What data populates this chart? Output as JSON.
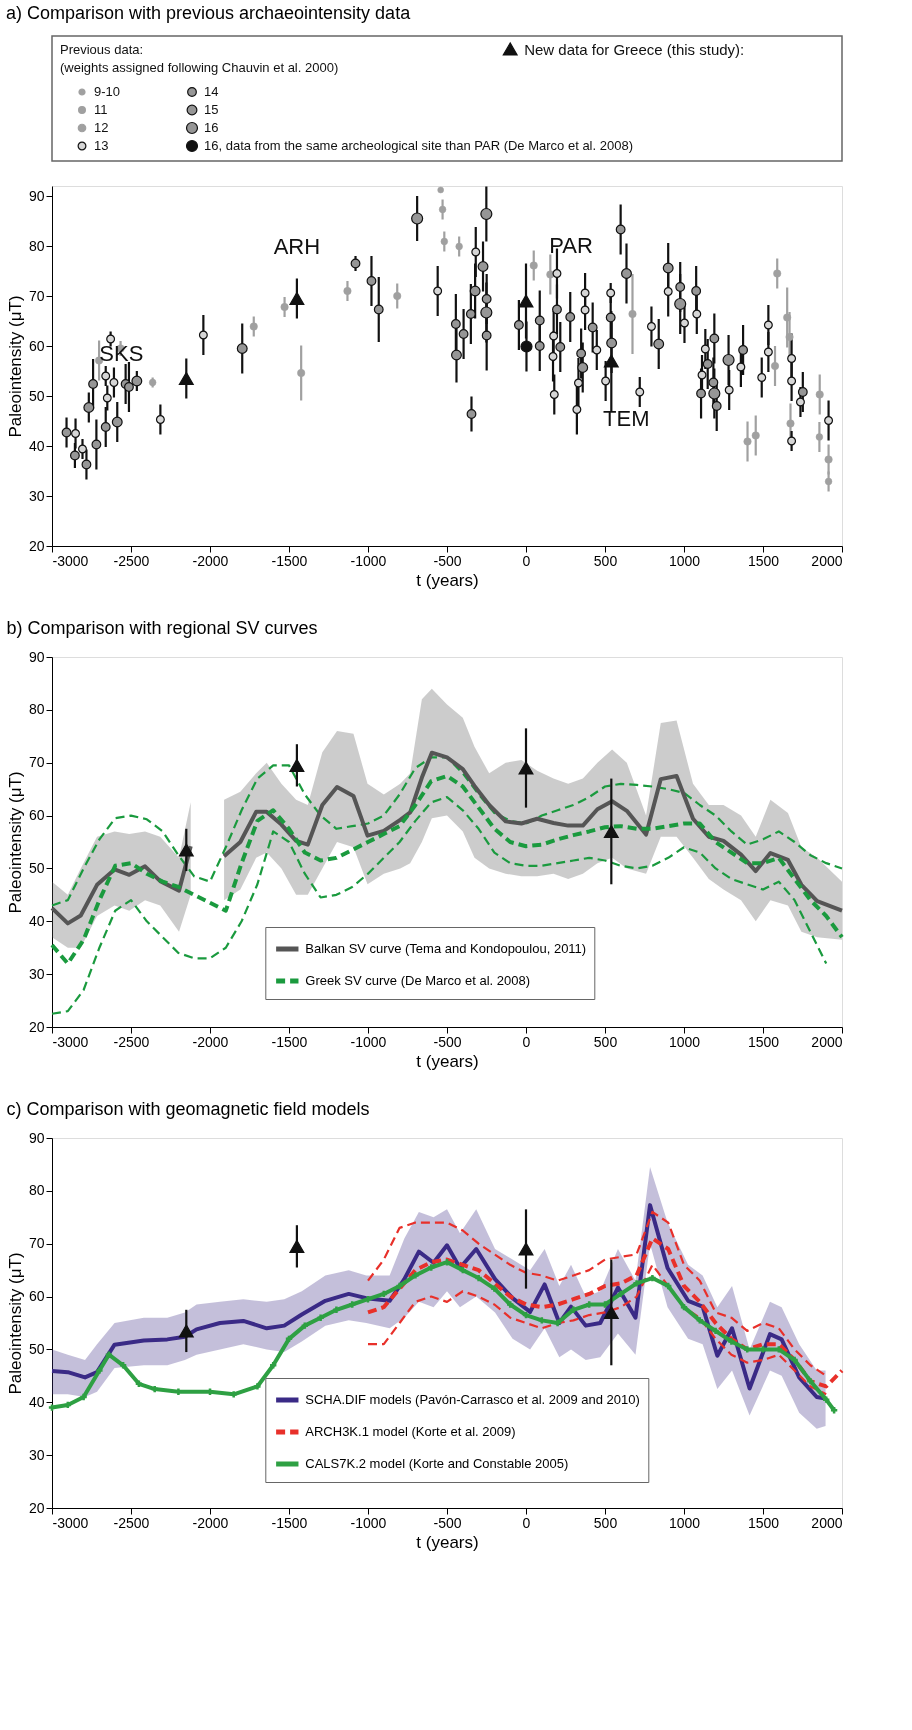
{
  "chart_data": [
    {
      "type": "scatter",
      "title": "a) Comparison with previous archaeointensity data",
      "xlabel": "t (years)",
      "ylabel": "Paleointensity (μT)",
      "xlim": [
        -3000,
        2000
      ],
      "xticks": [
        -3000,
        -2500,
        -2000,
        -1500,
        -1000,
        -500,
        0,
        500,
        1000,
        1500,
        2000
      ],
      "ylim": [
        20,
        92
      ],
      "yticks": [
        20,
        30,
        40,
        50,
        60,
        70,
        80,
        90
      ],
      "legend": "top",
      "legend_title": "Previous data:\n(weights assigned following Chauvin et al. 2000)",
      "annotations": [
        {
          "text": "SKS",
          "x": -2150,
          "y": 53.5
        },
        {
          "text": "ARH",
          "x": -1450,
          "y": 69.5
        },
        {
          "text": "PAR",
          "x": 0,
          "y": 69
        },
        {
          "text": "TEM",
          "x": 540,
          "y": 57
        }
      ],
      "series": [
        {
          "name": "9-10",
          "color": "#a0a0a0",
          "marker": "circle",
          "x": [
            -540
          ],
          "values": [
            91.2
          ]
        },
        {
          "name": "11",
          "color": "#a0a0a0",
          "marker": "circle",
          "x": [
            -528,
            -423,
            -517,
            -2363,
            1915,
            1857
          ],
          "values": [
            87.3,
            79.9,
            80.9,
            52.7,
            32.9,
            41.8
          ],
          "errors": [
            2,
            2,
            2,
            1,
            2,
            3
          ]
        },
        {
          "name": "12",
          "color": "#a0a0a0",
          "marker": "circle",
          "x": [
            -2702,
            -2566,
            -1723,
            -1528,
            -1423,
            -1130,
            -815,
            154,
            49,
            674,
            1590,
            1653,
            1576,
            1402,
            1454,
            1859,
            1915,
            1668,
            1674
          ],
          "values": [
            57.1,
            59.5,
            63.9,
            67.8,
            54.6,
            71.0,
            70.0,
            74.3,
            76.1,
            66.4,
            74.5,
            65.7,
            56.0,
            40.9,
            42.1,
            50.3,
            37.3,
            61.8,
            44.5
          ],
          "errors": [
            4,
            1.5,
            2,
            2,
            5.5,
            2,
            2.5,
            4,
            3,
            8,
            3,
            6,
            4,
            4,
            4,
            4,
            3,
            5,
            4
          ]
        },
        {
          "name": "13",
          "color": "#d6d6d6",
          "marker": "circle",
          "x": [
            -2851,
            -2807,
            -2650,
            -2660,
            -2629,
            -2608,
            -2314,
            -2042,
            -559,
            -318,
            196,
            175,
            171,
            374,
            374,
            332,
            322,
            179,
            448,
            504,
            536,
            720,
            794,
            900,
            1081,
            1003,
            1135,
            1114,
            1286,
            1360,
            1492,
            1534,
            1534,
            1681,
            1681,
            1681,
            1737,
            1915
          ],
          "values": [
            42.5,
            39.4,
            49.6,
            54.0,
            61.4,
            52.7,
            45.3,
            62.2,
            71.0,
            78.8,
            74.5,
            62.0,
            57.9,
            70.6,
            67.2,
            52.6,
            47.3,
            50.3,
            59.2,
            53.0,
            70.6,
            50.8,
            63.9,
            70.9,
            66.4,
            64.6,
            59.4,
            54.2,
            51.2,
            55.8,
            53.7,
            64.2,
            58.8,
            57.5,
            53.0,
            41.0,
            48.8,
            45.1
          ],
          "errors": [
            3,
            2,
            2.5,
            2,
            1.5,
            3,
            3,
            4,
            5,
            5,
            5,
            5,
            5,
            4,
            4,
            5,
            5,
            4,
            4,
            4,
            2,
            3,
            4,
            5,
            4,
            4,
            4,
            4,
            4,
            4,
            4,
            4,
            4,
            5,
            4,
            2,
            3,
            4
          ]
        },
        {
          "name": "14",
          "color": "#969696",
          "marker": "circle",
          "x": [
            -2908,
            -2855,
            -2782,
            -2719,
            -2740,
            -2660,
            -2534,
            -2513,
            -1079,
            -978,
            -932,
            -345,
            -444,
            -395,
            -249,
            -249,
            -349,
            -45,
            87,
            87,
            196,
            217,
            280,
            422,
            349,
            536,
            599,
            976,
            1077,
            1192,
            1150,
            1108,
            1186,
            1207,
            1374,
            1752
          ],
          "values": [
            42.7,
            38.1,
            36.3,
            40.3,
            52.4,
            43.8,
            52.4,
            51.8,
            76.5,
            73.0,
            67.3,
            46.4,
            64.4,
            62.4,
            69.4,
            62.1,
            66.4,
            64.2,
            65.1,
            60.0,
            67.3,
            59.8,
            65.8,
            63.7,
            58.5,
            65.7,
            83.3,
            71.8,
            71.0,
            61.5,
            56.4,
            50.5,
            52.7,
            48.0,
            59.2,
            50.8
          ],
          "errors": [
            3,
            2.5,
            3,
            5,
            5,
            4,
            4,
            5,
            1.5,
            5,
            6.5,
            3.5,
            6,
            5,
            5,
            7,
            6,
            5,
            6,
            5,
            5,
            5,
            5,
            5,
            5,
            5,
            5,
            5,
            5,
            5,
            5,
            5,
            5,
            5,
            5,
            4
          ]
        },
        {
          "name": "15",
          "color": "#969696",
          "marker": "circle",
          "x": [
            -2767,
            -2587,
            -2463,
            -1796,
            -440,
            -272,
            -322,
            359,
            542,
            636,
            840,
            900
          ],
          "values": [
            47.7,
            44.8,
            53.0,
            59.5,
            58.2,
            75.9,
            71.0,
            55.7,
            60.6,
            74.5,
            60.4,
            75.6
          ],
          "errors": [
            3,
            4,
            2,
            5,
            5.5,
            5,
            5.5,
            5,
            6,
            6,
            5,
            5
          ]
        },
        {
          "name": "16",
          "color": "#969696",
          "marker": "circle",
          "x": [
            -689,
            -251,
            -251,
            976,
            1192,
            1282
          ],
          "values": [
            85.5,
            86.4,
            66.7,
            68.4,
            50.5,
            57.2
          ],
          "errors": [
            4.5,
            5.5,
            6,
            6,
            5,
            5
          ]
        },
        {
          "name": "16, data from the same archeological site than PAR (De Marco et al. 2008)",
          "color": "#111111",
          "marker": "circle",
          "x": [
            3
          ],
          "values": [
            59.9
          ],
          "errors": [
            5
          ]
        },
        {
          "name": "New  data for Greece (this study):",
          "color": "#111111",
          "marker": "triangle",
          "x": [
            -2150,
            -1450,
            0,
            540
          ],
          "values": [
            53.5,
            69.5,
            69,
            57
          ],
          "errors": [
            4,
            4,
            7.5,
            10
          ]
        }
      ]
    },
    {
      "type": "line",
      "title": "b) Comparison with regional SV curves",
      "xlabel": "t (years)",
      "ylabel": "Paleointensity (μT)",
      "xlim": [
        -3000,
        2000
      ],
      "xticks": [
        -3000,
        -2500,
        -2000,
        -1500,
        -1000,
        -500,
        0,
        500,
        1000,
        1500,
        2000
      ],
      "ylim": [
        20,
        90
      ],
      "yticks": [
        20,
        30,
        40,
        50,
        60,
        70,
        80,
        90
      ],
      "legend": "bottom",
      "x": [
        -3000,
        -2900,
        -2800,
        -2700,
        -2600,
        -2500,
        -2400,
        -2300,
        -2200,
        -2100,
        -2000,
        -1900,
        -1800,
        -1700,
        -1600,
        -1500,
        -1400,
        -1300,
        -1200,
        -1100,
        -1000,
        -900,
        -800,
        -700,
        -600,
        -500,
        -400,
        -300,
        -200,
        -100,
        0,
        100,
        200,
        300,
        400,
        500,
        600,
        700,
        800,
        900,
        1000,
        1100,
        1200,
        1300,
        1400,
        1500,
        1600,
        1700,
        1800,
        1900,
        2000
      ],
      "series": [
        {
          "color": "#1a9a3e",
          "line_style": "dashed",
          "values": [
            43,
            44,
            50,
            55.5,
            59.5,
            60,
            59.3,
            57,
            52.5,
            48.5,
            47.5,
            54,
            61,
            67,
            69.5,
            69.5,
            64,
            60,
            57.5,
            58,
            58.5,
            60,
            64,
            69,
            71,
            71,
            68,
            64,
            60.5,
            59,
            58.5,
            60,
            61,
            62,
            63.5,
            65.5,
            66,
            65.8,
            65.5,
            65,
            64.3,
            62,
            60,
            57,
            54.5,
            55.5,
            57,
            55,
            52.5,
            51,
            50
          ]
        },
        {
          "color": "#1a9a3e",
          "line_style": "dashed",
          "values": [
            22.5,
            23,
            27,
            35,
            42,
            44,
            40,
            37,
            34,
            33,
            33,
            35,
            40,
            47,
            57,
            55,
            49,
            44.5,
            45,
            46.5,
            49,
            52,
            55,
            59,
            62.5,
            63.5,
            61,
            57.5,
            53,
            51,
            50.5,
            50.5,
            51,
            51.5,
            52,
            51.5,
            50.5,
            50,
            50.5,
            52,
            54,
            53,
            50,
            48,
            47,
            46,
            47.5,
            44,
            38,
            32,
            null
          ]
        },
        {
          "name": "Balkan SV curve (Tema and Kondopoulou, 2011)",
          "color": "#555555",
          "line_style": "solid",
          "x": [
            -3000,
            -2900,
            -2818,
            -2715,
            -2604,
            -2511,
            -2411,
            -2315,
            -2196,
            -2122,
            -2050,
            -1911,
            -1808,
            -1708,
            -1641,
            -1548,
            -1455,
            -1381,
            -1289,
            -1196,
            -1092,
            -1003,
            -900,
            -796,
            -733,
            -659,
            -596,
            -500,
            -400,
            -326,
            -233,
            -129,
            -29,
            71,
            174,
            267,
            360,
            452,
            545,
            638,
            760,
            853,
            953,
            1057,
            1157,
            1250,
            1361,
            1454,
            1547,
            1658,
            1743,
            1843,
            2000
          ],
          "values": [
            42.5,
            39.6,
            41.1,
            46.9,
            49.8,
            48.8,
            50.4,
            47.6,
            45.8,
            54.2,
            null,
            52.3,
            55.0,
            60.7,
            60.7,
            58.3,
            55.2,
            54.5,
            62.0,
            65.4,
            63.7,
            56.2,
            57.1,
            59.2,
            60.6,
            67.2,
            71.9,
            71.0,
            68.8,
            65.6,
            62.0,
            58.9,
            58.5,
            59.4,
            58.6,
            58.1,
            58.1,
            61.2,
            62.7,
            60.9,
            56.4,
            66.9,
            67.5,
            59.4,
            56.0,
            55.2,
            52.6,
            49.5,
            52.9,
            51.6,
            46.9,
            43.8,
            42.0
          ],
          "upper": [
            47.5,
            45,
            50,
            56,
            57,
            56.5,
            57,
            56,
            52,
            62.5,
            null,
            63,
            64.5,
            68,
            70,
            66,
            63,
            62,
            72,
            76,
            75.5,
            66,
            64,
            66,
            68,
            82,
            84,
            81,
            78.5,
            73,
            68,
            70,
            70.5,
            68.5,
            67,
            66,
            67,
            70,
            72.5,
            70,
            60,
            77.5,
            78,
            66,
            62,
            62,
            60,
            56,
            63,
            60.5,
            54,
            52,
            47.5
          ],
          "lower": [
            37,
            35,
            35,
            41,
            43,
            42,
            44,
            43,
            38,
            45,
            null,
            44,
            46,
            52,
            53,
            50,
            45,
            45,
            50,
            55,
            54,
            47,
            49,
            50,
            51,
            55,
            59.5,
            60,
            57,
            52,
            50,
            49,
            48.5,
            48.5,
            49,
            48,
            49,
            51,
            52,
            50,
            49,
            56,
            56,
            52,
            48,
            46,
            44,
            40,
            44,
            43,
            38,
            37,
            36.5
          ]
        },
        {
          "name": "Greek SV curve (De Marco et al. 2008)",
          "color": "#1a9a3e",
          "line_style": "dashed",
          "values": [
            35.5,
            32,
            36.5,
            44,
            50.5,
            51,
            49,
            47.5,
            46.5,
            45,
            43.5,
            42,
            51,
            59,
            61,
            57.5,
            53,
            51.5,
            52,
            53.5,
            55,
            56.5,
            58,
            62,
            66.5,
            67.5,
            65.5,
            61.5,
            57.5,
            55,
            54.2,
            54.5,
            55.5,
            56.3,
            57,
            57.8,
            58,
            57.5,
            57.5,
            58,
            58.5,
            58.5,
            55,
            53,
            51,
            51,
            52,
            48,
            44,
            41,
            37
          ]
        },
        {
          "type": "scatter",
          "color": "#111111",
          "marker": "triangle",
          "x": [
            -2150,
            -1450,
            0,
            540
          ],
          "values": [
            53.5,
            69.5,
            69,
            57
          ],
          "errors": [
            4,
            4,
            7.5,
            10
          ]
        }
      ]
    },
    {
      "type": "line",
      "title": "c) Comparison with geomagnetic field models",
      "xlabel": "t (years)",
      "ylabel": "Paleointensity (μT)",
      "xlim": [
        -3000,
        2000
      ],
      "xticks": [
        -3000,
        -2500,
        -2000,
        -1500,
        -1000,
        -500,
        0,
        500,
        1000,
        1500,
        2000
      ],
      "ylim": [
        20,
        90
      ],
      "yticks": [
        20,
        30,
        40,
        50,
        60,
        70,
        80,
        90
      ],
      "legend": "bottom",
      "x": [
        -1000,
        -900,
        -800,
        -700,
        -600,
        -500,
        -400,
        -300,
        -200,
        -100,
        0,
        100,
        200,
        300,
        400,
        500,
        600,
        700,
        800,
        900,
        1000,
        1100,
        1200,
        1300,
        1400,
        1500,
        1600,
        1700,
        1800,
        1900,
        2000
      ],
      "series": [
        {
          "name": "SCHA.DIF models (Pavón-Carrasco et al. 2009 and 2010)",
          "color": "#3a2a86",
          "line_style": "solid",
          "x": [
            -3000,
            -2900,
            -2791,
            -2715,
            -2604,
            -2419,
            -2270,
            -2159,
            -2085,
            -1937,
            -1789,
            -1641,
            -1530,
            -1419,
            -1270,
            -1122,
            -1011,
            -863,
            -770,
            -678,
            -585,
            -500,
            -418,
            -315,
            -196,
            -85,
            26,
            118,
            211,
            285,
            378,
            470,
            582,
            693,
            785,
            896,
            1026,
            1118,
            1211,
            1304,
            1415,
            1544,
            1618,
            1729,
            1840,
            1896
          ],
          "values": [
            45.9,
            45.7,
            44.7,
            45.7,
            50.9,
            51.7,
            51.9,
            52.4,
            53.8,
            55,
            55.4,
            54,
            54.5,
            56.6,
            59.2,
            60.5,
            59.7,
            59.2,
            63.3,
            68.5,
            66.4,
            69.7,
            65.4,
            69,
            63.3,
            59.7,
            57.1,
            62.3,
            55,
            58.1,
            54.5,
            55,
            61.7,
            56,
            77.3,
            65.4,
            59.2,
            58.1,
            48.8,
            54,
            42.6,
            52.9,
            51.9,
            44.7,
            41,
            40.7
          ],
          "upper": [
            50,
            49,
            48,
            51,
            55,
            56,
            56,
            57,
            58.5,
            59,
            59.5,
            59,
            59.5,
            61,
            64,
            65,
            64,
            64,
            71,
            76,
            75,
            76.5,
            72,
            76.5,
            69,
            67,
            65,
            69,
            62,
            66,
            60,
            61,
            69,
            63,
            84.5,
            74,
            66,
            64,
            58,
            62,
            50,
            59,
            58,
            51,
            46,
            46
          ],
          "lower": [
            41.5,
            41.5,
            41,
            42,
            46.5,
            47,
            47,
            48,
            49,
            50,
            51,
            50,
            49.5,
            51.5,
            54.5,
            55.5,
            55,
            54,
            56,
            59,
            58,
            61,
            58,
            60,
            57,
            52,
            50,
            54,
            48.5,
            50,
            48,
            48.5,
            53,
            49,
            70,
            58,
            52,
            51,
            42.5,
            46,
            37.5,
            46,
            45,
            38,
            35,
            35.5
          ]
        },
        {
          "color": "#e8302a",
          "line_style": "dashed",
          "values": [
            63,
            67,
            73,
            74,
            74,
            74,
            72.5,
            70,
            68,
            66,
            64.5,
            64,
            63,
            64,
            65,
            67,
            67.5,
            68,
            76,
            74,
            66,
            63,
            57,
            56,
            53.5,
            55,
            54,
            50,
            47,
            45,
            null
          ]
        },
        {
          "color": "#e8302a",
          "line_style": "dashed",
          "values": [
            51,
            51,
            55,
            59,
            60,
            59,
            61,
            60,
            58.5,
            56,
            55,
            54,
            55,
            55.5,
            56.5,
            57,
            58,
            60,
            66,
            62,
            58,
            56,
            52,
            49,
            47.5,
            48,
            49,
            46,
            43,
            41.5,
            null
          ]
        },
        {
          "name": "ARCH3K.1 model (Korte et al. 2009)",
          "color": "#e8302a",
          "line_style": "dashed",
          "values": [
            57,
            58,
            61.5,
            65,
            66.5,
            67,
            66,
            65,
            62.5,
            60,
            58.5,
            58,
            58.5,
            59.5,
            60.5,
            62,
            62.5,
            64,
            71,
            69,
            62,
            59,
            55,
            52,
            50,
            51,
            51,
            48,
            44,
            43,
            46
          ]
        },
        {
          "name": "CALS7K.2 model (Korte and Constable 2005)",
          "color": "#2ea043",
          "line_style": "solid",
          "marker": "cross",
          "x": [
            -3000,
            -2900,
            -2800,
            -2700,
            -2640,
            -2550,
            -2450,
            -2350,
            -2200,
            -2000,
            -1850,
            -1700,
            -1600,
            -1500,
            -1400,
            -1300,
            -1200,
            -1100,
            -1000,
            -900,
            -800,
            -700,
            -600,
            -500,
            -400,
            -300,
            -200,
            -100,
            0,
            100,
            200,
            300,
            400,
            500,
            600,
            700,
            800,
            900,
            1000,
            1100,
            1200,
            1300,
            1400,
            1500,
            1600,
            1700,
            1800,
            1900,
            1950
          ],
          "values": [
            39,
            39.5,
            41,
            46,
            49,
            47,
            43.5,
            42.5,
            42,
            42,
            41.5,
            43,
            47,
            52,
            54.5,
            56,
            57.5,
            58.5,
            59.5,
            60.5,
            62,
            64,
            65.5,
            66.5,
            65,
            63.5,
            61.5,
            58.5,
            56.5,
            55.5,
            55,
            57.5,
            58.5,
            58.5,
            60.5,
            62.5,
            63.5,
            62,
            58,
            55.5,
            53.5,
            51.5,
            50,
            50,
            50,
            48,
            44,
            40.5,
            38.5
          ]
        },
        {
          "type": "scatter",
          "color": "#111111",
          "marker": "triangle",
          "x": [
            -2150,
            -1450,
            0,
            540
          ],
          "values": [
            53.5,
            69.5,
            69,
            57
          ],
          "errors": [
            4,
            4,
            7.5,
            10
          ]
        }
      ]
    }
  ]
}
